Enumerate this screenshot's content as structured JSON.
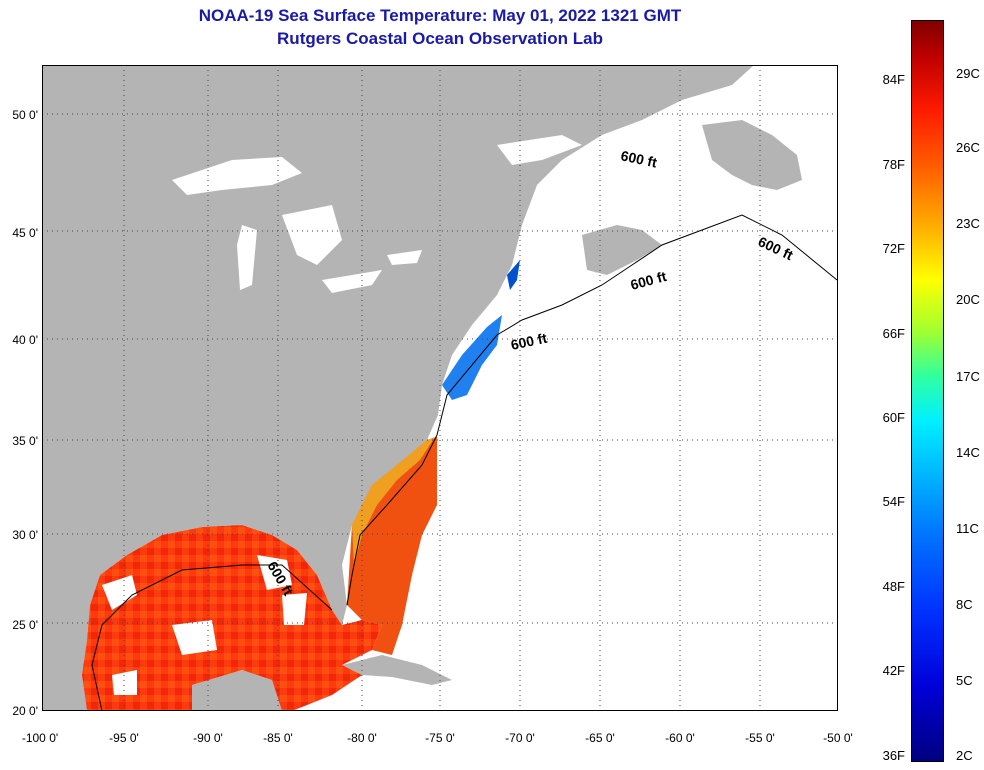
{
  "title": {
    "line1": "NOAA-19 Sea Surface Temperature:  May 01, 2022 1321 GMT",
    "line2": "Rutgers Coastal Ocean Observation Lab"
  },
  "axes": {
    "lat_labels": [
      "50 0'",
      "45 0'",
      "40 0'",
      "35 0'",
      "30 0'",
      "25 0'",
      "20 0'"
    ],
    "lon_labels": [
      "-100 0'",
      "-95 0'",
      "-90 0'",
      "-85 0'",
      "-80 0'",
      "-75 0'",
      "-70 0'",
      "-65 0'",
      "-60 0'",
      "-55 0'",
      "-50 0'"
    ]
  },
  "map": {
    "extent": {
      "lon_min": -100,
      "lon_max": -50,
      "lat_min": 20,
      "lat_max": 52.5
    },
    "isobath_label": "600 ft",
    "colors": {
      "land": "#b4b4b4",
      "ocean_nodata": "#ffffff",
      "frame": "#000000",
      "title": "#1a1aa8"
    }
  },
  "colorbar": {
    "fahrenheit_labels": [
      "84F",
      "78F",
      "72F",
      "66F",
      "60F",
      "54F",
      "48F",
      "42F",
      "36F"
    ],
    "celsius_labels": [
      "29C",
      "26C",
      "23C",
      "20C",
      "17C",
      "14C",
      "11C",
      "8C",
      "5C",
      "2C"
    ]
  }
}
